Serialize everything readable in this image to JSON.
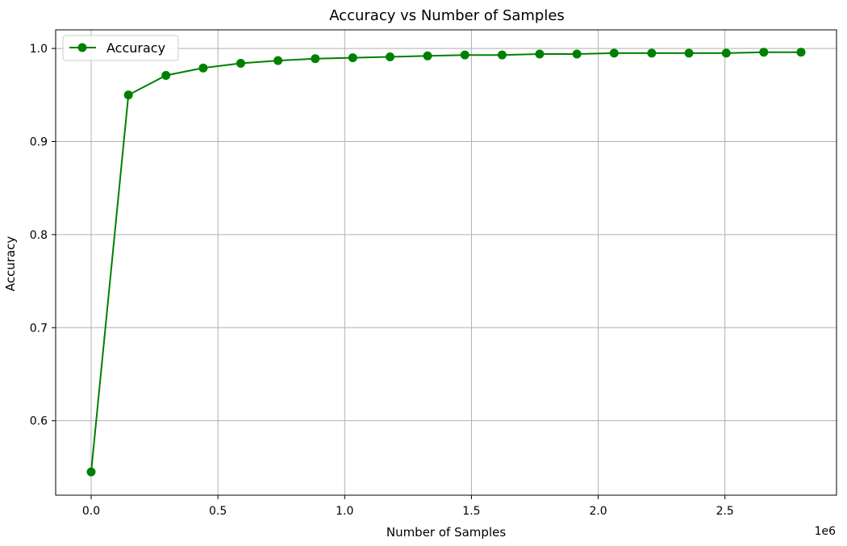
{
  "chart_data": {
    "type": "line",
    "title": "Accuracy vs Number of Samples",
    "xlabel": "Number of Samples",
    "ylabel": "Accuracy",
    "x_offset_label": "1e6",
    "x_scale_factor": 1000000,
    "xlim": [
      -140000,
      2940000
    ],
    "ylim": [
      0.52,
      1.02
    ],
    "x_ticks": [
      0,
      500000,
      1000000,
      1500000,
      2000000,
      2500000
    ],
    "x_tick_labels": [
      "0.0",
      "0.5",
      "1.0",
      "1.5",
      "2.0",
      "2.5"
    ],
    "y_ticks": [
      0.6,
      0.7,
      0.8,
      0.9,
      1.0
    ],
    "y_tick_labels": [
      "0.6",
      "0.7",
      "0.8",
      "0.9",
      "1.0"
    ],
    "grid": true,
    "legend_position": "top-left",
    "series": [
      {
        "name": "Accuracy",
        "color": "#008000",
        "marker": "circle",
        "x": [
          0,
          147000,
          295000,
          442000,
          590000,
          737000,
          884000,
          1032000,
          1179000,
          1327000,
          1474000,
          1621000,
          1769000,
          1916000,
          2063000,
          2211000,
          2358000,
          2505000,
          2653000,
          2800000
        ],
        "y": [
          0.545,
          0.95,
          0.971,
          0.979,
          0.984,
          0.987,
          0.989,
          0.99,
          0.991,
          0.992,
          0.993,
          0.993,
          0.994,
          0.994,
          0.995,
          0.995,
          0.995,
          0.995,
          0.996,
          0.996
        ]
      }
    ]
  }
}
